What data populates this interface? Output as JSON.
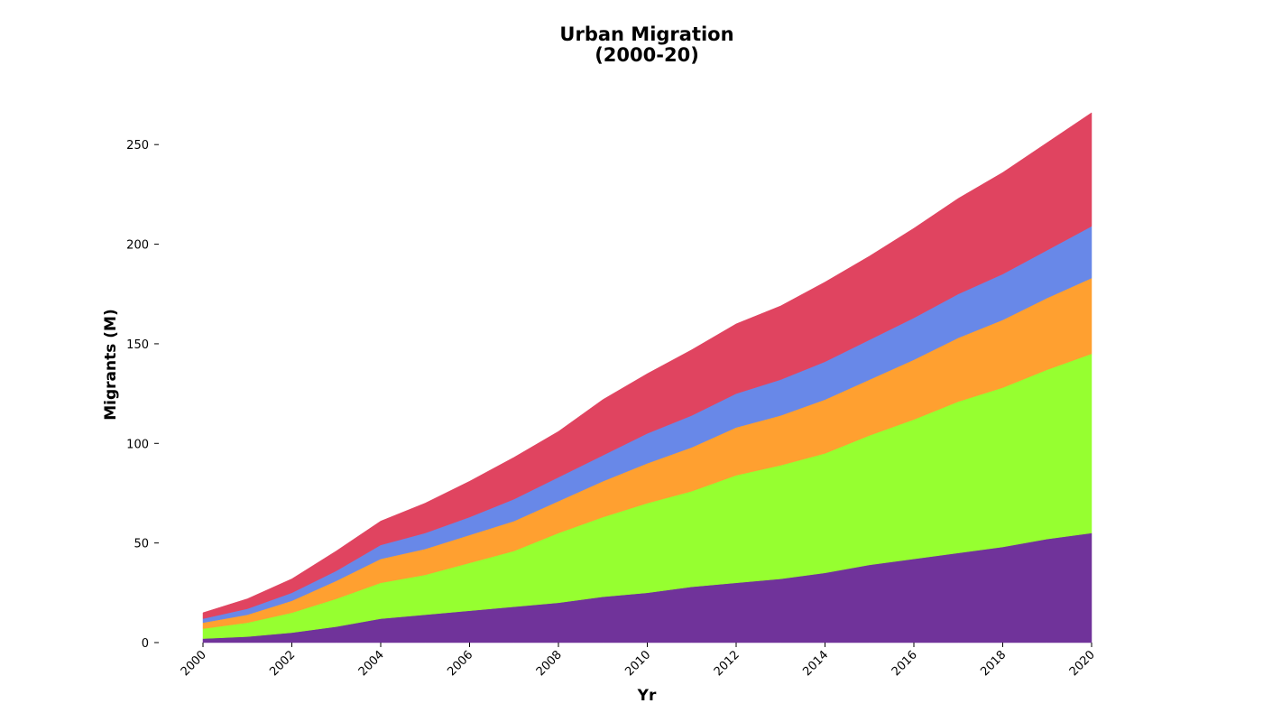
{
  "chart_data": {
    "type": "area",
    "stacked": true,
    "title_lines": [
      "Urban Migration",
      "(2000-20)"
    ],
    "xlabel": "Yr",
    "ylabel": "Migrants (M)",
    "x": [
      2000,
      2001,
      2002,
      2003,
      2004,
      2005,
      2006,
      2007,
      2008,
      2009,
      2010,
      2011,
      2012,
      2013,
      2014,
      2015,
      2016,
      2017,
      2018,
      2019,
      2020
    ],
    "xlim": [
      2000,
      2020
    ],
    "ylim": [
      0,
      265
    ],
    "x_ticks": [
      2000,
      2002,
      2004,
      2006,
      2008,
      2010,
      2012,
      2014,
      2016,
      2018,
      2020
    ],
    "y_ticks": [
      0,
      50,
      100,
      150,
      200,
      250
    ],
    "grid": false,
    "legend": "none",
    "series": [
      {
        "color": "#70339a",
        "values": [
          2,
          3,
          5,
          8,
          12,
          14,
          16,
          18,
          20,
          23,
          25,
          28,
          30,
          32,
          35,
          39,
          42,
          45,
          48,
          52,
          55
        ]
      },
      {
        "color": "#96ff30",
        "values": [
          5,
          7,
          10,
          14,
          18,
          20,
          24,
          28,
          35,
          40,
          45,
          48,
          54,
          57,
          60,
          65,
          70,
          76,
          80,
          85,
          90
        ]
      },
      {
        "color": "#ffa030",
        "values": [
          3,
          4,
          6,
          9,
          12,
          13,
          14,
          15,
          16,
          18,
          20,
          22,
          24,
          25,
          27,
          28,
          30,
          32,
          34,
          36,
          38
        ]
      },
      {
        "color": "#6888e8",
        "values": [
          2,
          3,
          4,
          5,
          7,
          8,
          9,
          11,
          12,
          13,
          15,
          16,
          17,
          18,
          19,
          20,
          21,
          22,
          23,
          24,
          26
        ]
      },
      {
        "color": "#e04460",
        "values": [
          3,
          5,
          7,
          10,
          12,
          15,
          18,
          21,
          23,
          28,
          30,
          33,
          35,
          37,
          40,
          42,
          45,
          48,
          51,
          54,
          57
        ]
      }
    ]
  }
}
